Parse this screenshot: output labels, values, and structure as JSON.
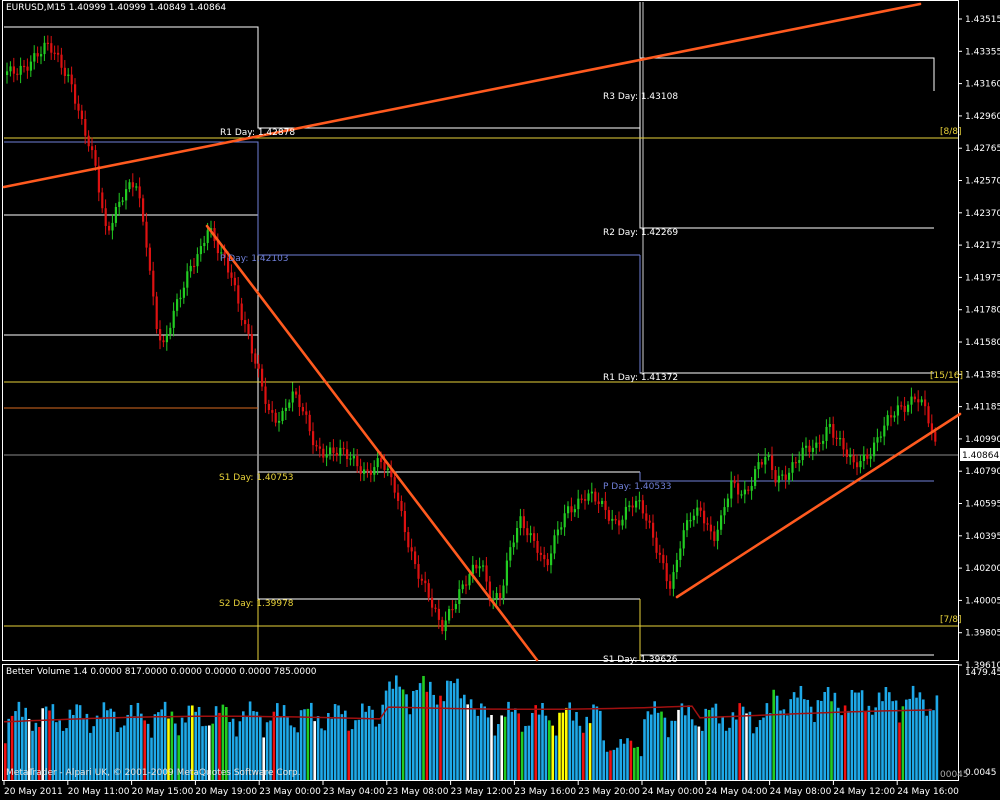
{
  "header": {
    "symbol_line": "EURUSD,M15  1.40999 1.40999 1.40849 1.40864"
  },
  "price_axis": {
    "labels": [
      "1.43515",
      "1.43355",
      "1.43160",
      "1.42960",
      "1.42765",
      "1.42570",
      "1.42370",
      "1.42175",
      "1.41975",
      "1.41780",
      "1.41580",
      "1.41385",
      "1.41185",
      "1.40990",
      "1.40790",
      "1.40595",
      "1.40395",
      "1.40200",
      "1.40005",
      "1.39805",
      "1.39610"
    ],
    "current_price": "1.40864"
  },
  "pivot_labels": [
    {
      "text": "R1 Day: 1.42878"
    },
    {
      "text": "P Day: 1.42103"
    },
    {
      "text": "S1 Day: 1.40753"
    },
    {
      "text": "S2 Day: 1.39978"
    },
    {
      "text": "R3 Day: 1.43108"
    },
    {
      "text": "R2 Day: 1.42269"
    },
    {
      "text": "R1 Day: 1.41372"
    },
    {
      "text": "P Day: 1.40533"
    },
    {
      "text": "S1 Day: 1.39626"
    }
  ],
  "murrey_labels": [
    "[8/8]",
    "[15/16]",
    "[7/8]"
  ],
  "indicator": {
    "title": "Better Volume 1.4  0.0000  817.0000  0.0000  0.0000  0.0000  785.0000",
    "axis_top": "1479.45",
    "axis_bottom": "0.0045",
    "axis_bottom_aux": "00045"
  },
  "copyright": "MetaTrader - Alpari UK, © 2001-2009 MetaQuotes Software Corp.",
  "time_axis": {
    "labels": [
      "20 May 2011",
      "20 May 11:00",
      "20 May 15:00",
      "20 May 19:00",
      "23 May 00:00",
      "23 May 04:00",
      "23 May 08:00",
      "23 May 12:00",
      "23 May 16:00",
      "23 May 20:00",
      "24 May 00:00",
      "24 May 04:00",
      "24 May 08:00",
      "24 May 12:00",
      "24 May 16:00"
    ]
  },
  "colors": {
    "bull_candle": "#22cc22",
    "bear_candle": "#dd1111",
    "trendline": "#ff5a1f",
    "pivot_line": "#ffffff",
    "murrey_line": "#e8d23a",
    "pivot_p_line": "#6f7fd8",
    "volume_normal": "#1ea8e8",
    "volume_climax": "#ee1111",
    "volume_churn": "#22cc22",
    "volume_lowvol": "#ffff00",
    "volume_white": "#ffffff",
    "ma_line": "#a01010"
  },
  "chart_data": [
    {
      "type": "candlestick",
      "title": "EURUSD,M15",
      "ylim": [
        1.3961,
        1.4365
      ],
      "last_close": 1.40864,
      "pivots_day1": {
        "R1": 1.42878,
        "P": 1.42103,
        "S1": 1.40753,
        "S2": 1.39978
      },
      "pivots_day2": {
        "R3": 1.43108,
        "R2": 1.42269,
        "R1": 1.41372,
        "P": 1.40533,
        "S1": 1.39626
      },
      "murrey_levels": {
        "8/8": 1.4283,
        "15/16": 1.4133,
        "7/8": 1.3985
      }
    },
    {
      "type": "bar",
      "title": "Better Volume 1.4",
      "ylim": [
        0.0045,
        1479.45
      ]
    }
  ]
}
